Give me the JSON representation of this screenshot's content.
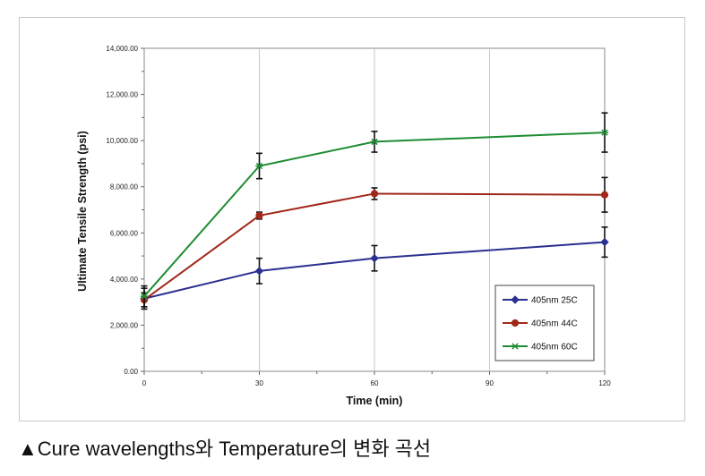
{
  "caption": "▲Cure wavelengths와 Temperature의 변화 곡선",
  "chart_data": {
    "type": "line",
    "xlabel": "Time (min)",
    "ylabel": "Ultimate Tensile Strength (psi)",
    "xlim": [
      0,
      120
    ],
    "ylim": [
      0,
      14000
    ],
    "x_ticks": [
      "0",
      "30",
      "60",
      "90",
      "120"
    ],
    "y_ticks": [
      "0.00",
      "2,000.00",
      "4,000.00",
      "6,000.00",
      "8,000.00",
      "10,000.00",
      "12,000.00",
      "14,000.00"
    ],
    "grid": "vertical",
    "legend_position": "bottom-right",
    "series": [
      {
        "name": "405nm 25C",
        "color": "#2b2f8f",
        "marker": "diamond",
        "x": [
          0,
          30,
          60,
          120
        ],
        "y": [
          3150,
          4350,
          4900,
          5600
        ],
        "error": [
          450,
          550,
          550,
          650
        ]
      },
      {
        "name": "405nm 44C",
        "color": "#a0281a",
        "marker": "circle",
        "x": [
          0,
          30,
          60,
          120
        ],
        "y": [
          3100,
          6750,
          7700,
          7650
        ],
        "error": [
          300,
          150,
          250,
          750
        ]
      },
      {
        "name": "405nm 60C",
        "color": "#1e8c32",
        "marker": "star",
        "x": [
          0,
          30,
          60,
          120
        ],
        "y": [
          3250,
          8900,
          9950,
          10350
        ],
        "error": [
          450,
          550,
          450,
          850
        ]
      }
    ]
  }
}
